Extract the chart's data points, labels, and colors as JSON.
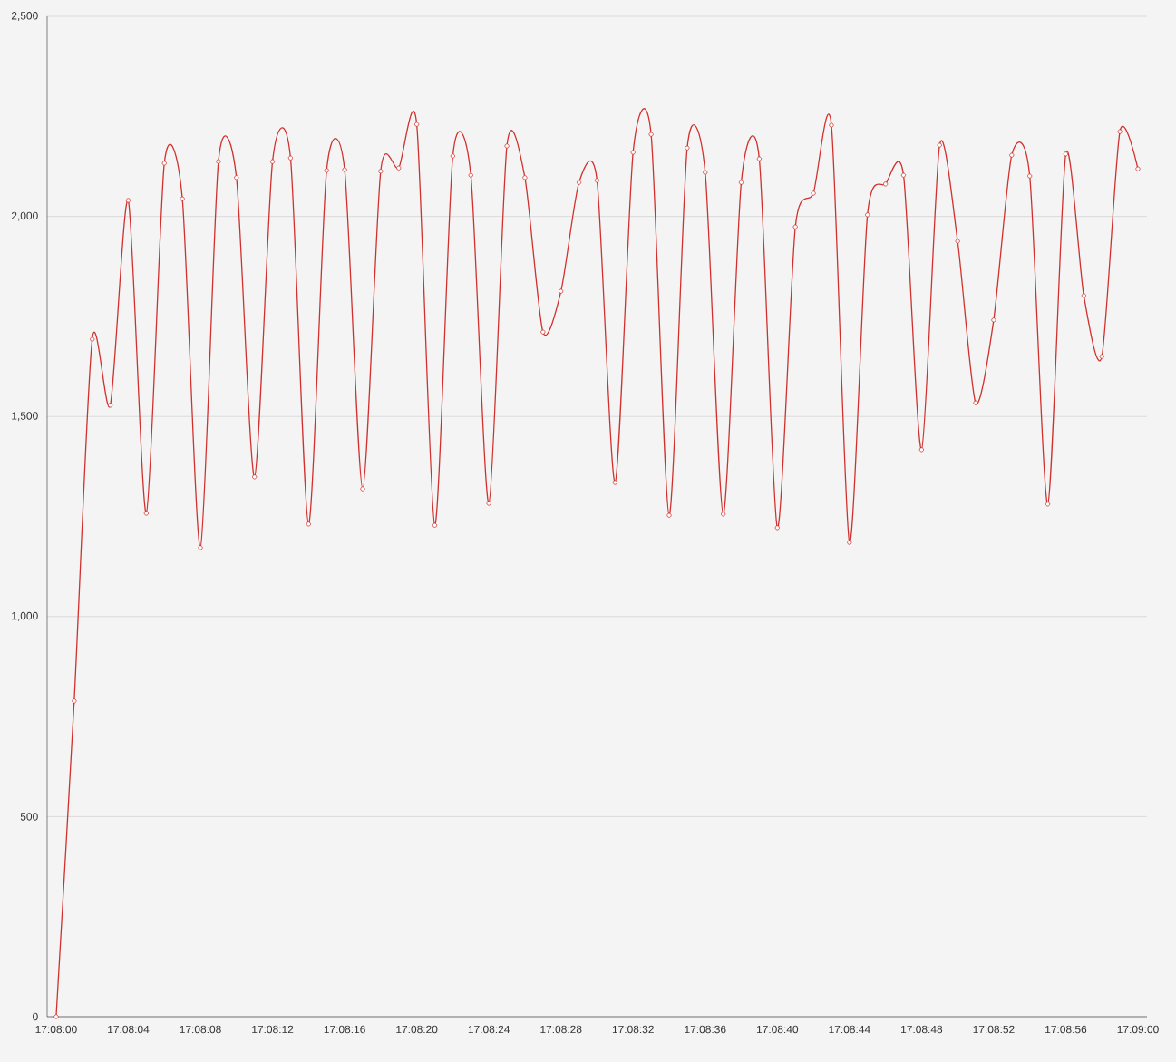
{
  "chart_data": {
    "type": "line",
    "categories": [
      "17:08:00",
      null,
      null,
      null,
      "17:08:04",
      null,
      null,
      null,
      "17:08:08",
      null,
      null,
      null,
      "17:08:12",
      null,
      null,
      null,
      "17:08:16",
      null,
      null,
      null,
      "17:08:20",
      null,
      null,
      null,
      "17:08:24",
      null,
      null,
      null,
      "17:08:28",
      null,
      null,
      null,
      "17:08:32",
      null,
      null,
      null,
      "17:08:36",
      null,
      null,
      null,
      "17:08:40",
      null,
      null,
      null,
      "17:08:44",
      null,
      null,
      null,
      "17:08:48",
      null,
      null,
      null,
      "17:08:52",
      null,
      null,
      null,
      "17:08:56",
      null,
      null,
      null,
      "17:09:00"
    ],
    "series": [
      {
        "color": "#d0312d",
        "values": [
          0,
          789,
          1693,
          1528,
          2040,
          1258,
          2133,
          2044,
          1172,
          2137,
          2097,
          1349,
          2137,
          2146,
          1231,
          2115,
          2117,
          1319,
          2113,
          2121,
          2230,
          1228,
          2151,
          2103,
          1283,
          2176,
          2097,
          1711,
          1813,
          2085,
          2090,
          1335,
          2160,
          2205,
          1253,
          2171,
          2110,
          1256,
          2085,
          2144,
          1222,
          1974,
          2058,
          2228,
          1185,
          2004,
          2081,
          2103,
          1417,
          2178,
          1938,
          1534,
          1741,
          2153,
          2101,
          1281,
          2156,
          1802,
          1650,
          2212,
          2119
        ]
      }
    ],
    "ylim": [
      0,
      2500
    ],
    "yticks": [
      0,
      500,
      {
        "value": 1000,
        "label": "1,000"
      },
      {
        "value": 1500,
        "label": "1,500"
      },
      {
        "value": 2000,
        "label": "2,000"
      },
      {
        "value": 2500,
        "label": "2,500"
      }
    ],
    "grid": "y",
    "marker": "circle",
    "line_style": "solid"
  }
}
